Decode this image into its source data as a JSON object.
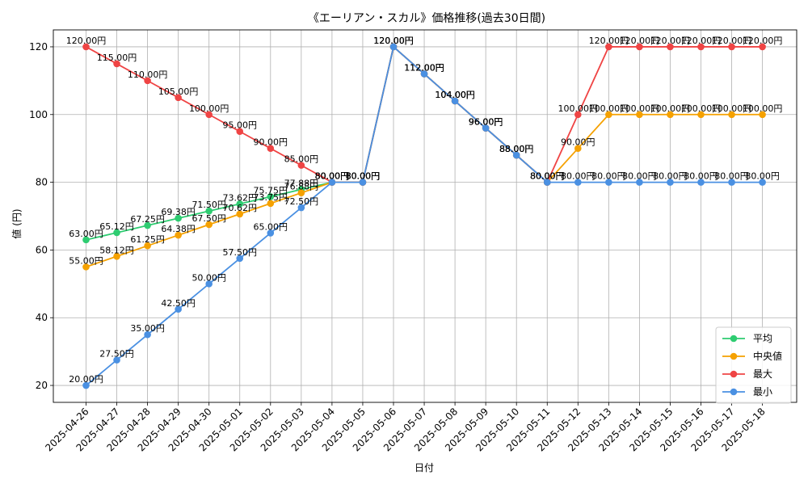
{
  "chart_data": {
    "type": "line",
    "title": "《エーリアン・スカル》価格推移(過去30日間)",
    "xlabel": "日付",
    "ylabel": "値 (円)",
    "ylim": [
      15,
      125
    ],
    "yticks": [
      20,
      40,
      60,
      80,
      100,
      120
    ],
    "grid": true,
    "legend_position": "bottom-right",
    "value_suffix": "円",
    "categories": [
      "2025-04-26",
      "2025-04-27",
      "2025-04-28",
      "2025-04-29",
      "2025-04-30",
      "2025-05-01",
      "2025-05-02",
      "2025-05-03",
      "2025-05-04",
      "2025-05-05",
      "2025-05-06",
      "2025-05-07",
      "2025-05-08",
      "2025-05-09",
      "2025-05-10",
      "2025-05-11",
      "2025-05-12",
      "2025-05-13",
      "2025-05-14",
      "2025-05-15",
      "2025-05-16",
      "2025-05-17",
      "2025-05-18"
    ],
    "series": [
      {
        "name": "平均",
        "color": "#2ecc71",
        "values": [
          63.0,
          65.12,
          67.25,
          69.38,
          71.5,
          73.62,
          75.75,
          77.88,
          80.0,
          80.0,
          120.0,
          112.0,
          104.0,
          96.0,
          88.0,
          80.0,
          null,
          null,
          null,
          null,
          null,
          null,
          null
        ]
      },
      {
        "name": "中央値",
        "color": "#f5a100",
        "values": [
          55.0,
          58.12,
          61.25,
          64.38,
          67.5,
          70.62,
          73.75,
          76.88,
          80.0,
          80.0,
          120.0,
          112.0,
          104.0,
          96.0,
          88.0,
          80.0,
          90.0,
          100.0,
          100.0,
          100.0,
          100.0,
          100.0,
          100.0
        ]
      },
      {
        "name": "最大",
        "color": "#ef4444",
        "values": [
          120.0,
          115.0,
          110.0,
          105.0,
          100.0,
          95.0,
          90.0,
          85.0,
          80.0,
          80.0,
          120.0,
          112.0,
          104.0,
          96.0,
          88.0,
          80.0,
          100.0,
          120.0,
          120.0,
          120.0,
          120.0,
          120.0,
          120.0
        ]
      },
      {
        "name": "最小",
        "color": "#4a90e2",
        "values": [
          20.0,
          27.5,
          35.0,
          42.5,
          50.0,
          57.5,
          65.0,
          72.5,
          80.0,
          80.0,
          120.0,
          112.0,
          104.0,
          96.0,
          88.0,
          80.0,
          80.0,
          80.0,
          80.0,
          80.0,
          80.0,
          80.0,
          80.0
        ]
      }
    ]
  }
}
